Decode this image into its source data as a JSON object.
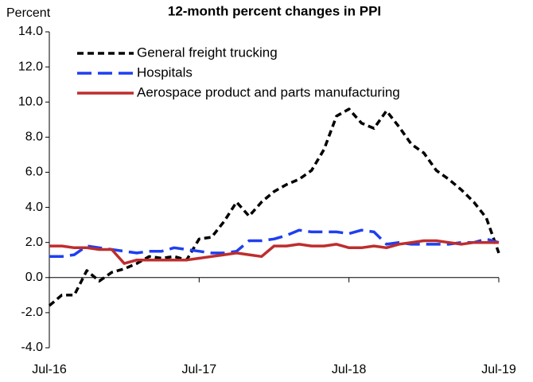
{
  "chart_data": {
    "type": "line",
    "title": "12-month percent changes in PPI",
    "y_label": "Percent",
    "categories": [
      "Jul-16",
      null,
      null,
      null,
      null,
      null,
      null,
      null,
      null,
      null,
      null,
      null,
      "Jul-17",
      null,
      null,
      null,
      null,
      null,
      null,
      null,
      null,
      null,
      null,
      null,
      "Jul-18",
      null,
      null,
      null,
      null,
      null,
      null,
      null,
      null,
      null,
      null,
      null,
      "Jul-19"
    ],
    "series": [
      {
        "name": "General freight trucking",
        "color": "#000000",
        "dash": "8,5",
        "values": [
          -1.6,
          -1.0,
          -1.0,
          0.4,
          -0.2,
          0.3,
          0.5,
          0.8,
          1.2,
          1.1,
          1.2,
          1.0,
          2.2,
          2.3,
          3.2,
          4.3,
          3.5,
          4.3,
          4.9,
          5.3,
          5.6,
          6.1,
          7.3,
          9.2,
          9.6,
          8.8,
          8.5,
          9.5,
          8.6,
          7.6,
          7.1,
          6.1,
          5.6,
          5.0,
          4.3,
          3.4,
          1.4
        ]
      },
      {
        "name": "Hospitals",
        "color": "#1f3ff0",
        "dash": "18,8",
        "values": [
          1.2,
          1.2,
          1.3,
          1.8,
          1.7,
          1.6,
          1.5,
          1.4,
          1.5,
          1.5,
          1.7,
          1.6,
          1.5,
          1.4,
          1.4,
          1.5,
          2.1,
          2.1,
          2.2,
          2.4,
          2.7,
          2.6,
          2.6,
          2.6,
          2.5,
          2.7,
          2.6,
          1.9,
          2.0,
          1.9,
          1.9,
          1.9,
          1.9,
          2.0,
          2.0,
          2.2,
          2.0
        ]
      },
      {
        "name": "Aerospace product and parts manufacturing",
        "color": "#be2d2d",
        "dash": "none",
        "values": [
          1.8,
          1.8,
          1.7,
          1.7,
          1.6,
          1.6,
          0.8,
          1.0,
          1.0,
          1.0,
          1.0,
          1.0,
          1.1,
          1.2,
          1.3,
          1.4,
          1.3,
          1.2,
          1.8,
          1.8,
          1.9,
          1.8,
          1.8,
          1.9,
          1.7,
          1.7,
          1.8,
          1.7,
          1.9,
          2.0,
          2.1,
          2.1,
          2.0,
          1.9,
          2.0,
          2.0,
          2.0
        ]
      }
    ],
    "ylim": [
      -4,
      14
    ],
    "yticks": [
      {
        "value": -4,
        "label": "-4.0"
      },
      {
        "value": -2,
        "label": "-2.0"
      },
      {
        "value": 0,
        "label": "0.0"
      },
      {
        "value": 2,
        "label": "2.0"
      },
      {
        "value": 4,
        "label": "4.0"
      },
      {
        "value": 6,
        "label": "6.0"
      },
      {
        "value": 8,
        "label": "8.0"
      },
      {
        "value": 10,
        "label": "10.0"
      },
      {
        "value": 12,
        "label": "12.0"
      },
      {
        "value": 14,
        "label": "14.0"
      }
    ],
    "grid": false,
    "legend": "upper left"
  }
}
